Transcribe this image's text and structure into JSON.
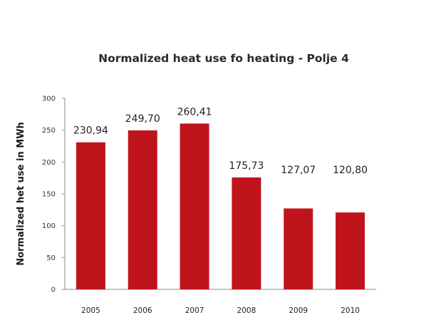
{
  "chart_data": {
    "type": "bar",
    "title": "Normalized heat use fo heating - Polje 4",
    "xlabel": "",
    "ylabel": "Normalized het use in MWh",
    "categories": [
      "2005",
      "2006",
      "2007",
      "2008",
      "2009",
      "2010"
    ],
    "values": [
      230.94,
      249.7,
      260.41,
      175.73,
      127.07,
      120.8
    ],
    "data_labels": [
      "230,94",
      "249,70",
      "260,41",
      "175,73",
      "127,07",
      "120,80"
    ],
    "ylim": [
      0,
      300
    ],
    "yticks": [
      "0",
      "50",
      "100",
      "150",
      "200",
      "250",
      "300"
    ],
    "bar_color": "#c0141c",
    "grid": false,
    "legend": "none"
  }
}
